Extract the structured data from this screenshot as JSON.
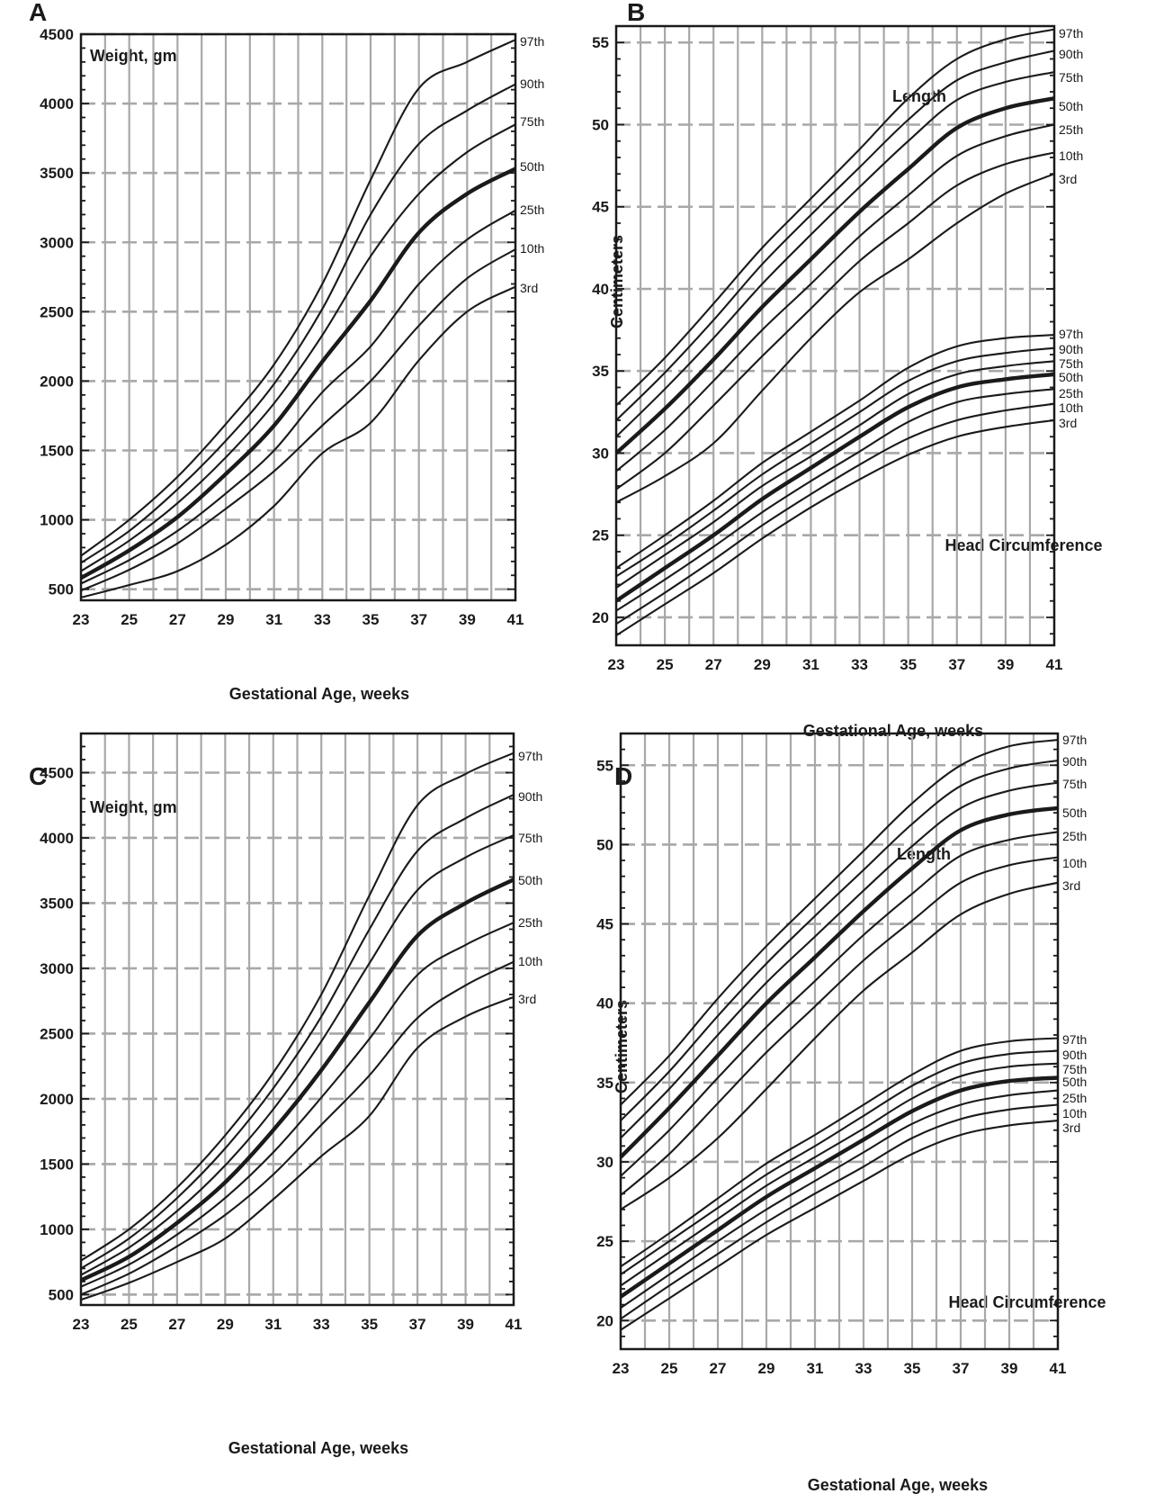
{
  "chart_data": [
    {
      "panel": "A",
      "type": "line",
      "inner_label": "Weight, gm",
      "xlabel": "Gestational Age, weeks",
      "ylabel": "",
      "xlim": [
        23,
        41
      ],
      "ylim": [
        420,
        4500
      ],
      "x_ticks": [
        23,
        25,
        27,
        29,
        31,
        33,
        35,
        37,
        39,
        41
      ],
      "y_ticks": [
        500,
        1000,
        1500,
        2000,
        2500,
        3000,
        3500,
        4000,
        4500
      ],
      "grid": true,
      "x": [
        23,
        25,
        27,
        29,
        31,
        33,
        35,
        37,
        39,
        41
      ],
      "series": [
        {
          "name": "97th",
          "values": [
            740,
            1000,
            1310,
            1690,
            2120,
            2700,
            3450,
            4110,
            4300,
            4460
          ]
        },
        {
          "name": "90th",
          "values": [
            690,
            920,
            1220,
            1570,
            1980,
            2520,
            3200,
            3710,
            3950,
            4140
          ]
        },
        {
          "name": "75th",
          "values": [
            630,
            850,
            1120,
            1450,
            1840,
            2330,
            2900,
            3350,
            3650,
            3850
          ]
        },
        {
          "name": "50th",
          "values": [
            580,
            780,
            1020,
            1330,
            1680,
            2140,
            2580,
            3070,
            3350,
            3530
          ]
        },
        {
          "name": "25th",
          "values": [
            540,
            710,
            920,
            1190,
            1500,
            1920,
            2250,
            2700,
            3020,
            3230
          ]
        },
        {
          "name": "10th",
          "values": [
            490,
            640,
            830,
            1080,
            1350,
            1680,
            2000,
            2400,
            2740,
            2950
          ]
        },
        {
          "name": "3rd",
          "values": [
            440,
            530,
            630,
            820,
            1100,
            1480,
            1700,
            2150,
            2500,
            2680
          ]
        }
      ]
    },
    {
      "panel": "B",
      "type": "line",
      "inner_labels": [
        "Length",
        "Head Circumference"
      ],
      "xlabel": "Gestational Age, weeks",
      "ylabel": "Centimeters",
      "xlim": [
        23,
        41
      ],
      "ylim": [
        18.3,
        56
      ],
      "x_ticks": [
        23,
        25,
        27,
        29,
        31,
        33,
        35,
        37,
        39,
        41
      ],
      "y_ticks": [
        20,
        25,
        30,
        35,
        40,
        45,
        50,
        55
      ],
      "grid": true,
      "x": [
        23,
        25,
        27,
        29,
        31,
        33,
        35,
        37,
        39,
        41
      ],
      "series": [
        {
          "name": "97th",
          "group": "Length",
          "values": [
            32.9,
            35.8,
            39.1,
            42.5,
            45.5,
            48.5,
            51.6,
            54.0,
            55.2,
            55.8
          ]
        },
        {
          "name": "90th",
          "group": "Length",
          "values": [
            32.0,
            34.9,
            38.1,
            41.5,
            44.5,
            47.4,
            50.3,
            52.7,
            53.8,
            54.5
          ]
        },
        {
          "name": "75th",
          "group": "Length",
          "values": [
            31.0,
            33.9,
            37.0,
            40.3,
            43.3,
            46.2,
            49.0,
            51.5,
            52.6,
            53.2
          ]
        },
        {
          "name": "50th",
          "group": "Length",
          "values": [
            30.0,
            32.7,
            35.7,
            38.9,
            41.8,
            44.7,
            47.3,
            49.8,
            51.0,
            51.6
          ]
        },
        {
          "name": "25th",
          "group": "Length",
          "values": [
            28.9,
            31.4,
            34.4,
            37.5,
            40.3,
            43.2,
            45.7,
            48.1,
            49.3,
            50.0
          ]
        },
        {
          "name": "10th",
          "group": "Length",
          "values": [
            27.8,
            30.0,
            32.9,
            35.9,
            38.8,
            41.7,
            44.0,
            46.3,
            47.6,
            48.3
          ]
        },
        {
          "name": "3rd",
          "group": "Length",
          "values": [
            27.0,
            28.6,
            30.6,
            33.8,
            37.0,
            39.8,
            41.8,
            44.0,
            45.8,
            47.0
          ]
        },
        {
          "name": "97th",
          "group": "Head Circumference",
          "values": [
            23.0,
            25.0,
            27.1,
            29.4,
            31.3,
            33.2,
            35.2,
            36.5,
            37.0,
            37.2
          ]
        },
        {
          "name": "90th",
          "group": "Head Circumference",
          "values": [
            22.5,
            24.4,
            26.5,
            28.7,
            30.6,
            32.5,
            34.4,
            35.6,
            36.1,
            36.4
          ]
        },
        {
          "name": "75th",
          "group": "Head Circumference",
          "values": [
            21.8,
            23.8,
            25.8,
            28.0,
            29.8,
            31.7,
            33.6,
            34.8,
            35.3,
            35.6
          ]
        },
        {
          "name": "50th",
          "group": "Head Circumference",
          "values": [
            21.0,
            23.0,
            25.0,
            27.2,
            29.1,
            31.0,
            32.8,
            34.0,
            34.5,
            34.8
          ]
        },
        {
          "name": "25th",
          "group": "Head Circumference",
          "values": [
            20.4,
            22.3,
            24.3,
            26.4,
            28.3,
            30.1,
            31.9,
            33.1,
            33.6,
            33.9
          ]
        },
        {
          "name": "10th",
          "group": "Head Circumference",
          "values": [
            19.6,
            21.5,
            23.5,
            25.6,
            27.5,
            29.3,
            30.9,
            32.0,
            32.6,
            33.0
          ]
        },
        {
          "name": "3rd",
          "group": "Head Circumference",
          "values": [
            18.9,
            20.8,
            22.7,
            24.8,
            26.7,
            28.4,
            29.9,
            31.0,
            31.6,
            32.0
          ]
        }
      ]
    },
    {
      "panel": "C",
      "type": "line",
      "inner_label": "Weight, gm",
      "xlabel": "Gestational Age, weeks",
      "ylabel": "",
      "xlim": [
        23,
        41
      ],
      "ylim": [
        420,
        4800
      ],
      "x_ticks": [
        23,
        25,
        27,
        29,
        31,
        33,
        35,
        37,
        39,
        41
      ],
      "y_ticks": [
        500,
        1000,
        1500,
        2000,
        2500,
        3000,
        3500,
        4000,
        4500
      ],
      "grid": true,
      "x": [
        23,
        25,
        27,
        29,
        31,
        33,
        35,
        37,
        39,
        41
      ],
      "series": [
        {
          "name": "97th",
          "values": [
            760,
            1000,
            1320,
            1720,
            2200,
            2800,
            3560,
            4250,
            4490,
            4650
          ]
        },
        {
          "name": "90th",
          "values": [
            700,
            930,
            1240,
            1620,
            2080,
            2630,
            3300,
            3900,
            4150,
            4330
          ]
        },
        {
          "name": "75th",
          "values": [
            650,
            860,
            1140,
            1490,
            1920,
            2440,
            3040,
            3600,
            3850,
            4020
          ]
        },
        {
          "name": "50th",
          "values": [
            610,
            790,
            1050,
            1360,
            1760,
            2220,
            2740,
            3250,
            3500,
            3680
          ]
        },
        {
          "name": "25th",
          "values": [
            560,
            730,
            960,
            1240,
            1590,
            2010,
            2460,
            2950,
            3180,
            3350
          ]
        },
        {
          "name": "10th",
          "values": [
            500,
            660,
            870,
            1110,
            1420,
            1800,
            2180,
            2620,
            2870,
            3050
          ]
        },
        {
          "name": "3rd",
          "values": [
            460,
            590,
            750,
            930,
            1230,
            1560,
            1870,
            2390,
            2630,
            2780
          ]
        }
      ]
    },
    {
      "panel": "D",
      "type": "line",
      "inner_labels": [
        "Length",
        "Head Circumference"
      ],
      "xlabel": "Gestational Age, weeks",
      "ylabel": "Centimeters",
      "xlim": [
        23,
        41
      ],
      "ylim": [
        18.2,
        57
      ],
      "x_ticks": [
        23,
        25,
        27,
        29,
        31,
        33,
        35,
        37,
        39,
        41
      ],
      "y_ticks": [
        20,
        25,
        30,
        35,
        40,
        45,
        50,
        55
      ],
      "grid": true,
      "x": [
        23,
        25,
        27,
        29,
        31,
        33,
        35,
        37,
        39,
        41
      ],
      "series": [
        {
          "name": "97th",
          "group": "Length",
          "values": [
            33.6,
            36.7,
            40.3,
            43.6,
            46.6,
            49.6,
            52.6,
            55.0,
            56.2,
            56.6
          ]
        },
        {
          "name": "90th",
          "group": "Length",
          "values": [
            32.6,
            35.7,
            39.2,
            42.5,
            45.5,
            48.4,
            51.3,
            53.7,
            54.8,
            55.3
          ]
        },
        {
          "name": "75th",
          "group": "Length",
          "values": [
            31.5,
            34.6,
            38.0,
            41.3,
            44.2,
            47.1,
            49.9,
            52.3,
            53.4,
            53.9
          ]
        },
        {
          "name": "50th",
          "group": "Length",
          "values": [
            30.3,
            33.4,
            36.7,
            40.0,
            42.9,
            45.8,
            48.5,
            50.9,
            51.9,
            52.3
          ]
        },
        {
          "name": "25th",
          "group": "Length",
          "values": [
            29.1,
            32.0,
            35.3,
            38.5,
            41.4,
            44.3,
            46.9,
            49.3,
            50.3,
            50.8
          ]
        },
        {
          "name": "10th",
          "group": "Length",
          "values": [
            27.9,
            30.5,
            33.7,
            36.9,
            39.8,
            42.7,
            45.2,
            47.6,
            48.7,
            49.2
          ]
        },
        {
          "name": "3rd",
          "group": "Length",
          "values": [
            27.0,
            29.0,
            31.5,
            34.6,
            37.8,
            40.8,
            43.2,
            45.6,
            46.9,
            47.6
          ]
        },
        {
          "name": "97th",
          "group": "Head Circumference",
          "values": [
            23.4,
            25.5,
            27.7,
            29.9,
            31.7,
            33.6,
            35.5,
            37.0,
            37.6,
            37.8
          ]
        },
        {
          "name": "90th",
          "group": "Head Circumference",
          "values": [
            22.9,
            25.0,
            27.1,
            29.2,
            31.0,
            32.9,
            34.8,
            36.2,
            36.8,
            37.0
          ]
        },
        {
          "name": "75th",
          "group": "Head Circumference",
          "values": [
            22.2,
            24.3,
            26.4,
            28.5,
            30.3,
            32.1,
            34.0,
            35.4,
            36.0,
            36.2
          ]
        },
        {
          "name": "50th",
          "group": "Head Circumference",
          "values": [
            21.5,
            23.6,
            25.7,
            27.8,
            29.6,
            31.4,
            33.2,
            34.5,
            35.1,
            35.3
          ]
        },
        {
          "name": "25th",
          "group": "Head Circumference",
          "values": [
            20.8,
            22.9,
            25.0,
            27.0,
            28.8,
            30.6,
            32.4,
            33.6,
            34.2,
            34.5
          ]
        },
        {
          "name": "10th",
          "group": "Head Circumference",
          "values": [
            20.1,
            22.2,
            24.2,
            26.2,
            28.0,
            29.7,
            31.5,
            32.7,
            33.3,
            33.6
          ]
        },
        {
          "name": "3rd",
          "group": "Head Circumference",
          "values": [
            19.4,
            21.4,
            23.4,
            25.4,
            27.1,
            28.8,
            30.5,
            31.7,
            32.3,
            32.6
          ]
        }
      ]
    }
  ],
  "panels": {
    "A": {
      "letter": "A",
      "inner_label": "Weight, gm",
      "xlabel": "Gestational Age, weeks"
    },
    "B": {
      "letter": "B",
      "length_label": "Length",
      "head_label": "Head Circumference",
      "xlabel": "Gestational Age, weeks",
      "ylabel": "Centimeters"
    },
    "C": {
      "letter": "C",
      "inner_label": "Weight, gm",
      "xlabel": "Gestational Age, weeks"
    },
    "D": {
      "letter": "D",
      "length_label": "Length",
      "head_label": "Head Circumference",
      "xlabel": "Gestational Age, weeks",
      "ylabel": "Centimeters"
    }
  }
}
